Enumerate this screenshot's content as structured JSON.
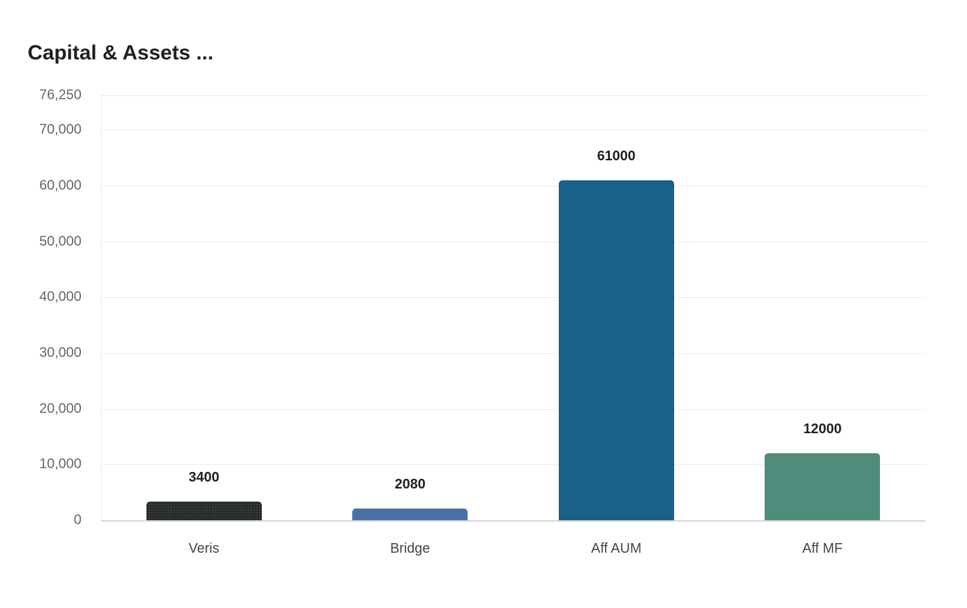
{
  "title": "Capital & Assets ...",
  "chart_data": {
    "type": "bar",
    "title": "Capital & Assets ...",
    "xlabel": "",
    "ylabel": "",
    "categories": [
      "Veris",
      "Bridge",
      "Aff AUM",
      "Aff MF"
    ],
    "values": [
      3400,
      2080,
      61000,
      12000
    ],
    "colors": [
      "#2f3437",
      "#4a72a6",
      "#186189",
      "#4f8c7b"
    ],
    "data_labels": [
      "3400",
      "2080",
      "61000",
      "12000"
    ],
    "ylim": [
      0,
      76250
    ],
    "yticks": [
      0,
      10000,
      20000,
      30000,
      40000,
      50000,
      60000,
      70000,
      76250
    ],
    "ytick_labels": [
      "0",
      "10,000",
      "20,000",
      "30,000",
      "40,000",
      "50,000",
      "60,000",
      "70,000",
      "76,250"
    ],
    "grid": true,
    "legend": null
  }
}
